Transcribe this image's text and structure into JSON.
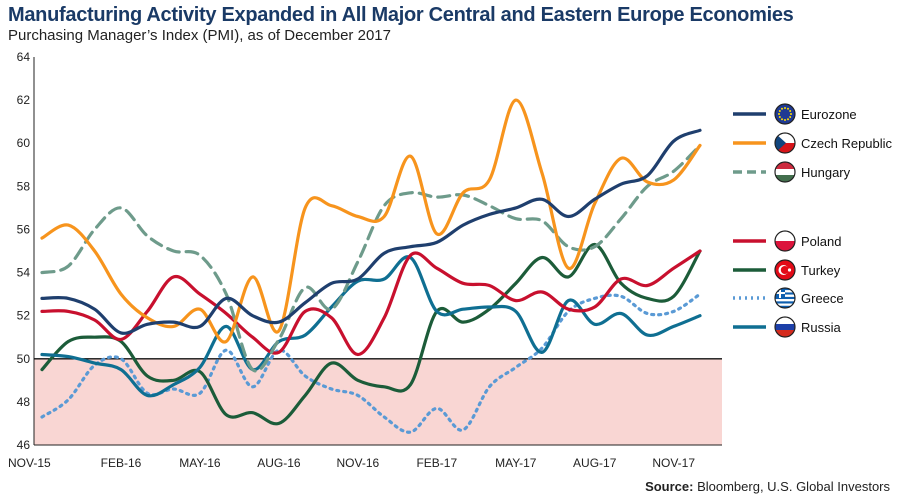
{
  "title": "Manufacturing Activity Expanded in All Major Central and Eastern Europe Economies",
  "subtitle": "Purchasing Manager’s Index (PMI), as of December 2017",
  "source_label": "Source:",
  "source_text": " Bloomberg, U.S. Global Investors",
  "chart_data": {
    "type": "line",
    "title": "Manufacturing Activity Expanded in All Major Central and Eastern Europe Economies",
    "subtitle": "Purchasing Manager’s Index (PMI), as of December 2017",
    "x": [
      "NOV-15",
      "DEC-15",
      "JAN-16",
      "FEB-16",
      "MAR-16",
      "APR-16",
      "MAY-16",
      "JUN-16",
      "JUL-16",
      "AUG-16",
      "SEP-16",
      "OCT-16",
      "NOV-16",
      "DEC-16",
      "JAN-17",
      "FEB-17",
      "MAR-17",
      "APR-17",
      "MAY-17",
      "JUN-17",
      "JUL-17",
      "AUG-17",
      "SEP-17",
      "OCT-17",
      "NOV-17",
      "DEC-17"
    ],
    "x_tick_labels": [
      "NOV-15",
      "FEB-16",
      "MAY-16",
      "AUG-16",
      "NOV-16",
      "FEB-17",
      "MAY-17",
      "AUG-17",
      "NOV-17"
    ],
    "ylim": [
      46,
      64
    ],
    "y_ticks": [
      46,
      48,
      50,
      52,
      54,
      56,
      58,
      60,
      62,
      64
    ],
    "reference_line": 50,
    "shaded_below": 50,
    "grid": false,
    "legend_position": "right",
    "series": [
      {
        "name": "Eurozone",
        "color": "#1f3f6e",
        "style": "solid",
        "values": [
          52.8,
          52.8,
          52.3,
          51.2,
          51.6,
          51.7,
          51.5,
          52.8,
          52.0,
          51.7,
          52.6,
          53.5,
          53.7,
          54.9,
          55.2,
          55.4,
          56.2,
          56.7,
          57.0,
          57.4,
          56.6,
          57.4,
          58.1,
          58.5,
          60.1,
          60.6
        ]
      },
      {
        "name": "Czech Republic",
        "color": "#f7941d",
        "style": "solid",
        "values": [
          55.6,
          56.2,
          55.0,
          53.0,
          51.9,
          51.5,
          52.3,
          50.8,
          53.8,
          51.3,
          57.0,
          57.1,
          56.6,
          56.6,
          59.4,
          55.8,
          57.7,
          58.3,
          62.0,
          58.6,
          54.2,
          57.2,
          59.3,
          58.2,
          58.3,
          59.9
        ]
      },
      {
        "name": "Hungary",
        "color": "#6e9b8b",
        "style": "dashed",
        "values": [
          54.0,
          54.3,
          56.0,
          57.0,
          55.7,
          55.0,
          54.8,
          53.0,
          49.5,
          50.9,
          53.3,
          52.3,
          54.5,
          57.1,
          57.7,
          57.5,
          57.6,
          57.1,
          56.5,
          56.4,
          55.2,
          55.2,
          56.5,
          58.0,
          58.7,
          59.9
        ]
      },
      {
        "name": "Poland",
        "color": "#c8102e",
        "style": "solid",
        "values": [
          52.2,
          52.2,
          51.8,
          50.9,
          52.2,
          53.8,
          53.0,
          52.1,
          51.0,
          50.3,
          52.2,
          51.9,
          50.2,
          51.9,
          54.8,
          54.2,
          53.5,
          53.4,
          52.7,
          53.1,
          52.3,
          52.4,
          53.7,
          53.4,
          54.2,
          55.0
        ]
      },
      {
        "name": "Turkey",
        "color": "#1c5c39",
        "style": "solid",
        "values": [
          49.5,
          50.8,
          51.0,
          50.8,
          49.2,
          49.0,
          49.4,
          47.4,
          47.5,
          47.0,
          48.3,
          49.8,
          49.0,
          48.7,
          48.8,
          52.2,
          51.7,
          52.3,
          53.5,
          54.7,
          53.8,
          55.3,
          53.5,
          52.8,
          52.9,
          55.0
        ]
      },
      {
        "name": "Greece",
        "color": "#5a9ad5",
        "style": "dotted",
        "values": [
          47.3,
          48.1,
          49.7,
          50.0,
          48.4,
          48.6,
          48.4,
          50.4,
          48.7,
          50.4,
          49.2,
          48.6,
          48.3,
          47.3,
          46.6,
          47.7,
          46.7,
          48.7,
          49.6,
          50.5,
          52.2,
          52.8,
          52.9,
          52.1,
          52.2,
          53.0
        ]
      },
      {
        "name": "Russia",
        "color": "#0f6f92",
        "style": "solid",
        "values": [
          50.2,
          50.1,
          49.8,
          49.5,
          48.3,
          48.8,
          49.6,
          51.5,
          49.5,
          50.8,
          51.1,
          52.4,
          53.6,
          53.7,
          54.7,
          52.2,
          52.3,
          52.4,
          52.2,
          50.3,
          52.7,
          51.6,
          52.1,
          51.1,
          51.5,
          52.0
        ]
      }
    ]
  },
  "legend": [
    {
      "name": "Eurozone",
      "flag": "eu-flag-icon"
    },
    {
      "name": "Czech Republic",
      "flag": "czech-flag-icon"
    },
    {
      "name": "Hungary",
      "flag": "hungary-flag-icon"
    },
    {
      "name": "Poland",
      "flag": "poland-flag-icon"
    },
    {
      "name": "Turkey",
      "flag": "turkey-flag-icon"
    },
    {
      "name": "Greece",
      "flag": "greece-flag-icon"
    },
    {
      "name": "Russia",
      "flag": "russia-flag-icon"
    }
  ]
}
